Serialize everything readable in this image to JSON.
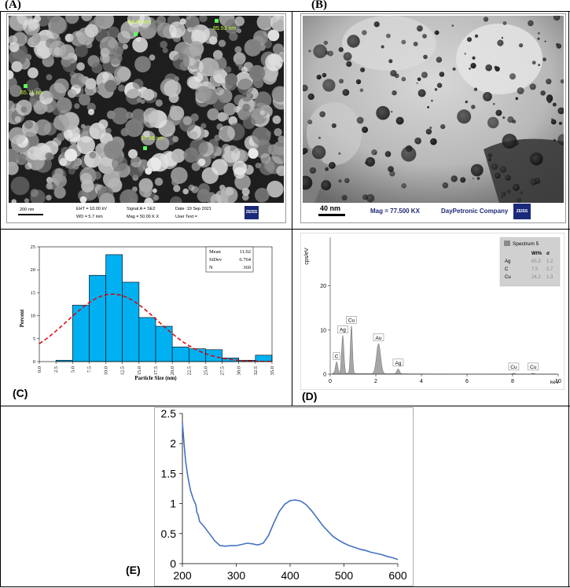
{
  "panels": {
    "a": "(A)",
    "b": "(B)",
    "c": "(C)",
    "d": "(D)",
    "e": "(E)"
  },
  "sem": {
    "measurements": [
      "84.45 nm",
      "85.93 nm",
      "65.71 nm",
      "37.98 nm"
    ],
    "scale": "200 nm",
    "eht": "EHT = 10.00 kV",
    "wd": "WD = 5.7 mm",
    "signal": "Signal A = SE2",
    "mag": "Mag =  50.00 K X",
    "date": "Date :19 Sep 2021",
    "user": "User Text =",
    "logo": "ZEISS"
  },
  "tem": {
    "scale": "40 nm",
    "mag": "Mag = 77.500 KX",
    "company": "DayPetronic Company",
    "logo": "ZEISS"
  },
  "chart_data": [
    {
      "type": "bar",
      "panel": "C",
      "xlabel": "Particle Size (nm)",
      "ylabel": "Percent",
      "x_ticks": [
        "0.0",
        "2.5",
        "5.0",
        "7.5",
        "10.0",
        "12.5",
        "15.0",
        "17.5",
        "20.0",
        "22.5",
        "25.0",
        "27.5",
        "30.0",
        "32.5",
        "35.0"
      ],
      "y_ticks": [
        "0",
        "5",
        "10",
        "15",
        "20",
        "25"
      ],
      "xlim": [
        0,
        35
      ],
      "ylim": [
        0,
        25
      ],
      "bin_width": 2.5,
      "bin_starts": [
        2.5,
        5.0,
        7.5,
        10.0,
        12.5,
        15.0,
        17.5,
        20.0,
        22.5,
        25.0,
        27.5,
        30.0,
        32.5
      ],
      "values": [
        0.3,
        12.3,
        18.8,
        23.3,
        17.3,
        9.6,
        7.7,
        3.2,
        2.8,
        2.6,
        0.8,
        0.3,
        1.4
      ],
      "fit_curve": "normal",
      "fit_mean": 11.02,
      "fit_peak": 14.7,
      "fit_sd": 6.764,
      "stats": [
        {
          "label": "Mean",
          "value": "11.02"
        },
        {
          "label": "StDev",
          "value": "6.764"
        },
        {
          "label": "N",
          "value": "360"
        }
      ],
      "colors": {
        "bar": "#00b0f0",
        "fit": "#e00000"
      }
    },
    {
      "type": "area",
      "panel": "D",
      "xlabel": "keV",
      "ylabel": "cps/eV",
      "x_ticks": [
        "0",
        "2",
        "4",
        "6",
        "8",
        "10"
      ],
      "y_ticks": [
        "0",
        "10",
        "20"
      ],
      "xlim": [
        0,
        10
      ],
      "ylim": [
        0,
        31
      ],
      "peaks": [
        {
          "label": "C",
          "x": 0.28,
          "y": 2.6
        },
        {
          "label": "Ag",
          "x": 0.55,
          "y": 8.6
        },
        {
          "label": "Cu",
          "x": 0.93,
          "y": 10.8
        },
        {
          "label": "Au",
          "x": 2.12,
          "y": 6.8
        },
        {
          "label": "Ag",
          "x": 2.98,
          "y": 1.1
        },
        {
          "label": "Cu",
          "x": 8.05,
          "y": 0.2
        },
        {
          "label": "Cu",
          "x": 8.9,
          "y": 0.2
        }
      ],
      "legend": {
        "title": "Spectrum 5",
        "headers": [
          "Wt%",
          "σ"
        ],
        "rows": [
          {
            "el": "Ag",
            "wt": "65.3",
            "sigma": "1.2"
          },
          {
            "el": "C",
            "wt": "7.5",
            "sigma": "0.7"
          },
          {
            "el": "Cu",
            "wt": "24.2",
            "sigma": "1.3"
          }
        ]
      },
      "colors": {
        "fill": "#a6a6a6",
        "legend_bg": "#d0d0d0"
      }
    },
    {
      "type": "line",
      "panel": "E",
      "x_ticks": [
        "200",
        "300",
        "400",
        "500",
        "600"
      ],
      "y_ticks": [
        "0",
        "0.5",
        "1",
        "1.5",
        "2",
        "2.5"
      ],
      "xlim": [
        200,
        600
      ],
      "ylim": [
        0,
        2.5
      ],
      "x": [
        200,
        203,
        206,
        210,
        215,
        220,
        225,
        227,
        229,
        232,
        240,
        250,
        260,
        270,
        280,
        290,
        300,
        310,
        320,
        330,
        340,
        350,
        360,
        370,
        380,
        390,
        400,
        410,
        420,
        430,
        440,
        450,
        460,
        470,
        480,
        490,
        500,
        510,
        520,
        530,
        540,
        550,
        560,
        570,
        580,
        590,
        600
      ],
      "y": [
        2.35,
        2.0,
        1.7,
        1.45,
        1.22,
        1.08,
        0.98,
        0.85,
        0.82,
        0.7,
        0.62,
        0.5,
        0.38,
        0.3,
        0.29,
        0.3,
        0.3,
        0.32,
        0.34,
        0.33,
        0.31,
        0.34,
        0.47,
        0.68,
        0.87,
        0.99,
        1.05,
        1.06,
        1.04,
        0.98,
        0.88,
        0.76,
        0.64,
        0.54,
        0.45,
        0.39,
        0.34,
        0.3,
        0.27,
        0.24,
        0.22,
        0.19,
        0.17,
        0.15,
        0.12,
        0.1,
        0.07
      ],
      "colors": {
        "line": "#4472c4"
      }
    }
  ]
}
